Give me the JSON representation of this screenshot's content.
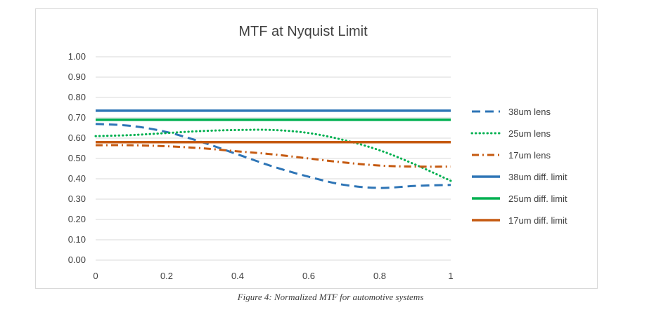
{
  "caption": "Figure 4: Normalized MTF for automotive systems",
  "chart_data": {
    "type": "line",
    "title": "MTF at Nyquist Limit",
    "xlabel": "",
    "ylabel": "",
    "xlim": [
      0,
      1
    ],
    "ylim": [
      0,
      1
    ],
    "x_ticks": [
      0,
      0.2,
      0.4,
      0.6,
      0.8,
      1
    ],
    "x_tick_labels": [
      "0",
      "0.2",
      "0.4",
      "0.6",
      "0.8",
      "1"
    ],
    "y_ticks": [
      0,
      0.1,
      0.2,
      0.3,
      0.4,
      0.5,
      0.6,
      0.7,
      0.8,
      0.9,
      1.0
    ],
    "y_tick_labels": [
      "0.00",
      "0.10",
      "0.20",
      "0.30",
      "0.40",
      "0.50",
      "0.60",
      "0.70",
      "0.80",
      "0.90",
      "1.00"
    ],
    "grid": "horizontal",
    "legend_position": "right",
    "series": [
      {
        "name": "38um lens",
        "color": "#2e75b6",
        "dash": "long-dash",
        "x": [
          0,
          0.1,
          0.2,
          0.3,
          0.4,
          0.5,
          0.6,
          0.7,
          0.8,
          0.9,
          1.0
        ],
        "y": [
          0.67,
          0.66,
          0.63,
          0.58,
          0.52,
          0.46,
          0.41,
          0.37,
          0.355,
          0.365,
          0.37
        ]
      },
      {
        "name": "25um lens",
        "color": "#00b050",
        "dash": "dot",
        "x": [
          0,
          0.1,
          0.2,
          0.3,
          0.4,
          0.5,
          0.6,
          0.7,
          0.8,
          0.9,
          1.0
        ],
        "y": [
          0.61,
          0.615,
          0.625,
          0.635,
          0.64,
          0.64,
          0.625,
          0.59,
          0.54,
          0.47,
          0.39
        ]
      },
      {
        "name": "17um lens",
        "color": "#c55a11",
        "dash": "dash-dot",
        "x": [
          0,
          0.1,
          0.2,
          0.3,
          0.4,
          0.5,
          0.6,
          0.7,
          0.8,
          0.9,
          1.0
        ],
        "y": [
          0.565,
          0.565,
          0.56,
          0.55,
          0.535,
          0.52,
          0.5,
          0.48,
          0.465,
          0.46,
          0.46
        ]
      },
      {
        "name": "38um diff. limit",
        "color": "#2e75b6",
        "dash": "solid",
        "x": [
          0,
          1
        ],
        "y": [
          0.735,
          0.735
        ]
      },
      {
        "name": "25um diff. limit",
        "color": "#00b050",
        "dash": "solid",
        "x": [
          0,
          1
        ],
        "y": [
          0.69,
          0.69
        ]
      },
      {
        "name": "17um diff. limit",
        "color": "#c55a11",
        "dash": "solid",
        "x": [
          0,
          1
        ],
        "y": [
          0.58,
          0.58
        ]
      }
    ]
  }
}
